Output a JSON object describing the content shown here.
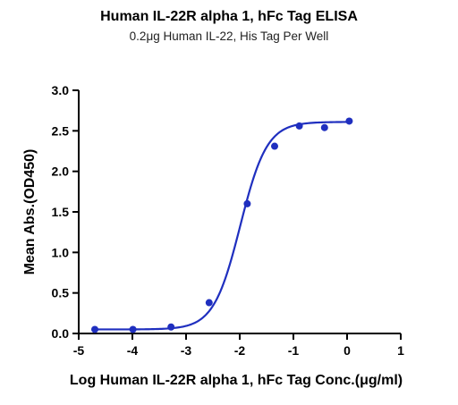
{
  "chart_data": {
    "type": "scatter",
    "title": "Human IL-22R alpha 1, hFc Tag ELISA",
    "subtitle": "0.2μg Human IL-22, His Tag Per Well",
    "xlabel": "Log Human IL-22R alpha 1, hFc Tag Conc.(μg/ml)",
    "ylabel": "Mean Abs.(OD450)",
    "xlim": [
      -5,
      1
    ],
    "ylim": [
      0,
      3
    ],
    "xticks": [
      -5,
      -4,
      -3,
      -2,
      -1,
      0,
      1
    ],
    "yticks": [
      0.0,
      0.5,
      1.0,
      1.5,
      2.0,
      2.5,
      3.0
    ],
    "xtick_labels": [
      "-5",
      "-4",
      "-3",
      "-2",
      "-1",
      "0",
      "1"
    ],
    "ytick_labels": [
      "0.0",
      "0.5",
      "1.0",
      "1.5",
      "2.0",
      "2.5",
      "3.0"
    ],
    "grid": false,
    "color": "#1f2fbf",
    "points": [
      {
        "x": -4.7,
        "y": 0.05
      },
      {
        "x": -3.99,
        "y": 0.05
      },
      {
        "x": -3.28,
        "y": 0.08
      },
      {
        "x": -2.57,
        "y": 0.38
      },
      {
        "x": -1.86,
        "y": 1.6
      },
      {
        "x": -1.35,
        "y": 2.31
      },
      {
        "x": -0.89,
        "y": 2.56
      },
      {
        "x": -0.42,
        "y": 2.54
      },
      {
        "x": 0.04,
        "y": 2.62
      }
    ],
    "fit_curve": {
      "model": "4PL",
      "bottom": 0.05,
      "top": 2.61,
      "logEC50": -1.99,
      "hill": 1.75
    }
  }
}
